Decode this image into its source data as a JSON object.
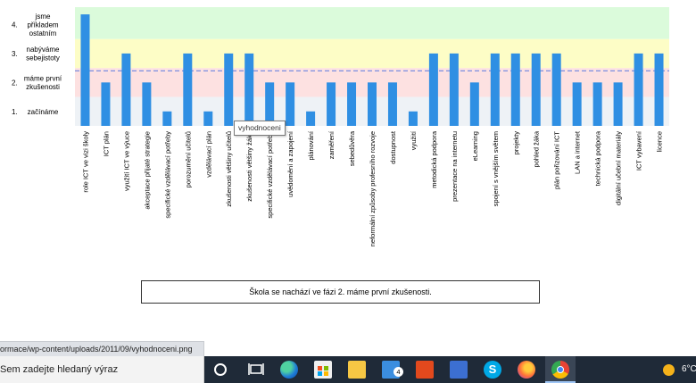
{
  "chart_data": {
    "type": "bar",
    "y_levels": [
      {
        "value": 1,
        "num": "1.",
        "label_lines": [
          "začínáme"
        ],
        "band_color": "#eef2f6"
      },
      {
        "value": 2,
        "num": "2.",
        "label_lines": [
          "máme první",
          "zkušenosti"
        ],
        "band_color": "#fde1e1"
      },
      {
        "value": 3,
        "num": "3.",
        "label_lines": [
          "nabýváme",
          "sebejistoty"
        ],
        "band_color": "#fdfdc6"
      },
      {
        "value": 4,
        "num": "4.",
        "label_lines": [
          "jsme",
          "příkladem",
          "ostatním"
        ],
        "band_color": "#dbfbdb"
      }
    ],
    "ylim": [
      0.5,
      4.6
    ],
    "reference_line": 2.4,
    "grid": false,
    "bar_color": "#2f8fe3",
    "reference_line_color": "#7b8fe0",
    "categories": [
      "role ICT ve vizi školy",
      "ICT plán",
      "využití ICT ve výuce",
      "akceptace přijaté strategie",
      "specifické vzdělávací potřeby",
      "porozumění učitelů",
      "vzdělávací plán",
      "zkušenosti většiny učitelů",
      "zkušenosti většiny žáků",
      "specifické vzdělávací potřeby",
      "uvědomění a zapojení",
      "plánování",
      "zaměření",
      "sebedůvěra",
      "neformální způsoby profesního rozvoje",
      "dostupnost",
      "využití",
      "metodická podpora",
      "prezentace na internetu",
      "eLearning",
      "spojení s vnějším světem",
      "projekty",
      "pohled žáka",
      "plán pořizování ICT",
      "LAN a internet",
      "technická podpora",
      "digitální učební materiály",
      "ICT vybavení",
      "licence"
    ],
    "values": [
      4.35,
      2,
      3,
      2,
      1,
      3,
      1,
      3,
      3,
      2,
      2,
      1,
      2,
      2,
      2,
      2,
      1,
      3,
      3,
      2,
      3,
      3,
      3,
      3,
      2,
      2,
      2,
      3,
      3
    ]
  },
  "tooltip": {
    "text": "vyhodnoceni"
  },
  "summary": {
    "text": "Škola se nachází ve fázi 2. máme první zkušenosti."
  },
  "status_bar": {
    "url": "ormace/wp-content/uploads/2011/09/vyhodnoceni.png"
  },
  "taskbar": {
    "search_placeholder": "Sem zadejte hledaný výraz",
    "mail_badge": "4",
    "skype_letter": "S",
    "weather": "6°C"
  }
}
